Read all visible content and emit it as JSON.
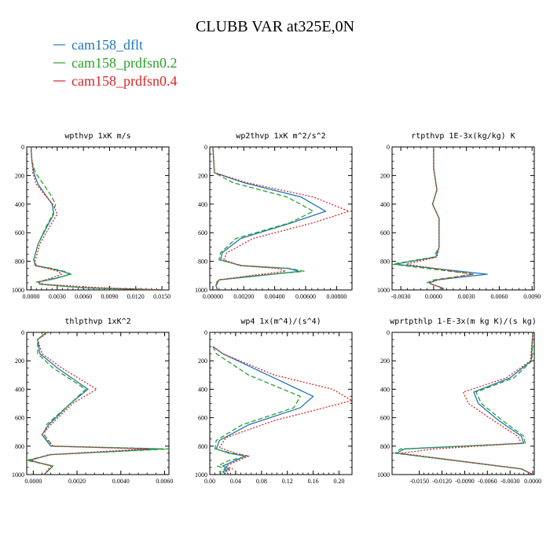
{
  "title": "CLUBB VAR at325E,0N",
  "legend": [
    {
      "label": "cam158_dflt",
      "color": "#1f77b4"
    },
    {
      "label": "cam158_prdfsn0.2",
      "color": "#2ca02c"
    },
    {
      "label": "cam158_prdfsn0.4",
      "color": "#d62728"
    }
  ],
  "chart_data": [
    {
      "type": "line",
      "title": "wpthvp  1xK m/s",
      "xlim": [
        -0.0005,
        0.0158
      ],
      "ylim": [
        0,
        1000
      ],
      "xticks": [
        0,
        0.003,
        0.006,
        0.009,
        0.012,
        0.015
      ],
      "xtick_labels": [
        "0.0000",
        "0.0030",
        "0.0060",
        "0.0090",
        "0.0120",
        "0.0150"
      ],
      "yticks": [
        0,
        200,
        400,
        600,
        800,
        1000
      ],
      "ytick_labels": [
        "0",
        "200",
        "400",
        "600",
        "800",
        "1000"
      ],
      "series": [
        {
          "name": "cam158_dflt",
          "x": [
            0,
            0.0001,
            0.0003,
            0.0008,
            0.0016,
            0.0024,
            0.0026,
            0.0018,
            0.0008,
            0.0003,
            0.0005,
            0.0022,
            0.0036,
            0.0045,
            0.0028,
            0.0008,
            0.0011,
            0.006,
            0.0155
          ],
          "y": [
            0,
            100,
            180,
            260,
            330,
            400,
            470,
            560,
            680,
            790,
            830,
            850,
            870,
            890,
            920,
            945,
            960,
            985,
            1000
          ]
        },
        {
          "name": "cam158_prdfsn0.2",
          "x": [
            0,
            0.0001,
            0.0005,
            0.0014,
            0.0022,
            0.0028,
            0.0025,
            0.0017,
            0.0008,
            0.0003,
            0.0006,
            0.0024,
            0.0038,
            0.0046,
            0.0026,
            0.0006,
            0.001,
            0.006,
            0.0155
          ],
          "y": [
            0,
            100,
            180,
            260,
            330,
            400,
            470,
            560,
            680,
            790,
            830,
            850,
            870,
            890,
            920,
            945,
            960,
            985,
            1000
          ]
        },
        {
          "name": "cam158_prdfsn0.4",
          "x": [
            0,
            0.0001,
            0.0002,
            0.0006,
            0.0015,
            0.0025,
            0.003,
            0.0021,
            0.001,
            0.0005,
            0.0004,
            0.0019,
            0.0031,
            0.0035,
            0.0022,
            0.0008,
            0.0015,
            0.008,
            0.0155
          ],
          "y": [
            0,
            100,
            180,
            260,
            330,
            400,
            470,
            560,
            680,
            790,
            830,
            850,
            870,
            890,
            920,
            945,
            960,
            985,
            1000
          ]
        }
      ]
    },
    {
      "type": "line",
      "title": "wp2thvp  1xK m^2/s^2",
      "xlim": [
        -0.0002,
        0.009
      ],
      "ylim": [
        0,
        1000
      ],
      "xticks": [
        0,
        0.002,
        0.004,
        0.006,
        0.008
      ],
      "xtick_labels": [
        "0.00000",
        "0.00200",
        "0.00400",
        "0.00600",
        "0.00800"
      ],
      "yticks": [
        0,
        200,
        400,
        600,
        800,
        1000
      ],
      "ytick_labels": [
        "0",
        "200",
        "400",
        "600",
        "800",
        "1000"
      ],
      "series": [
        {
          "name": "cam158_dflt",
          "x": [
            0,
            0.0001,
            0.002,
            0.0057,
            0.0073,
            0.0051,
            0.0018,
            0.0006,
            0.0005,
            0.0018,
            0.0049,
            0.0056,
            0.003,
            0.0004,
            0.0002,
            0.0003
          ],
          "y": [
            0,
            180,
            250,
            350,
            450,
            530,
            640,
            740,
            790,
            830,
            850,
            870,
            900,
            930,
            970,
            1000
          ]
        },
        {
          "name": "cam158_prdfsn0.2",
          "x": [
            0,
            0.0001,
            0.0013,
            0.0048,
            0.0065,
            0.005,
            0.0015,
            0.0005,
            0.0004,
            0.0019,
            0.005,
            0.0059,
            0.0028,
            0.0003,
            0.0002,
            0.0003
          ],
          "y": [
            0,
            180,
            250,
            350,
            450,
            530,
            640,
            740,
            790,
            830,
            850,
            870,
            900,
            930,
            970,
            1000
          ]
        },
        {
          "name": "cam158_prdfsn0.4",
          "x": [
            0,
            0.0001,
            0.0022,
            0.0065,
            0.0088,
            0.0065,
            0.0026,
            0.0009,
            0.0007,
            0.0018,
            0.0042,
            0.0047,
            0.0024,
            0.0004,
            0.0002,
            0.0003
          ],
          "y": [
            0,
            180,
            250,
            350,
            450,
            530,
            640,
            740,
            790,
            830,
            850,
            870,
            900,
            930,
            970,
            1000
          ]
        }
      ]
    },
    {
      "type": "line",
      "title": "rtpthvp  1E-3x(kg/kg) K",
      "xlim": [
        -0.0038,
        0.0092
      ],
      "ylim": [
        0,
        1000
      ],
      "xticks": [
        -0.003,
        0,
        0.003,
        0.006,
        0.009
      ],
      "xtick_labels": [
        "-0.0030",
        "0.0000",
        "0.0030",
        "0.0060",
        "0.0090"
      ],
      "yticks": [
        0,
        200,
        400,
        600,
        800,
        1000
      ],
      "ytick_labels": [
        "0",
        "200",
        "400",
        "600",
        "800",
        "1000"
      ],
      "series": [
        {
          "name": "cam158_dflt",
          "x": [
            0,
            0,
            0.0003,
            -0.0001,
            0.0005,
            0.0005,
            0.0002,
            -0.0035,
            0.0049,
            0.0003,
            -0.0004,
            -0.0002,
            0.0006,
            0.0009,
            0.0005
          ],
          "y": [
            0,
            150,
            300,
            400,
            500,
            700,
            770,
            820,
            890,
            930,
            950,
            960,
            980,
            990,
            1000
          ]
        },
        {
          "name": "cam158_prdfsn0.2",
          "x": [
            0,
            0,
            0.0003,
            -0.0001,
            0.0005,
            0.0005,
            0,
            -0.0038,
            0.0037,
            0,
            -0.0006,
            -0.0002,
            0.0006,
            0.0009,
            0.0005
          ],
          "y": [
            0,
            150,
            300,
            400,
            500,
            700,
            770,
            820,
            890,
            930,
            950,
            960,
            980,
            990,
            1000
          ]
        },
        {
          "name": "cam158_prdfsn0.4",
          "x": [
            0,
            0,
            0.0003,
            -0.0001,
            0.0005,
            0.0005,
            0.0003,
            -0.0025,
            0.0036,
            0.0004,
            -0.0003,
            -0.0002,
            0.0006,
            0.0009,
            0.0005
          ],
          "y": [
            0,
            150,
            300,
            400,
            500,
            700,
            770,
            820,
            890,
            930,
            950,
            960,
            980,
            990,
            1000
          ]
        }
      ]
    },
    {
      "type": "line",
      "title": "thlpthvp  1xK^2",
      "xlim": [
        -0.0003,
        0.0062
      ],
      "ylim": [
        0,
        1000
      ],
      "xticks": [
        0,
        0.002,
        0.004,
        0.006
      ],
      "xtick_labels": [
        "0.0000",
        "0.0020",
        "0.0040",
        "0.0060"
      ],
      "yticks": [
        0,
        200,
        400,
        600,
        800,
        1000
      ],
      "ytick_labels": [
        "0",
        "200",
        "400",
        "600",
        "800",
        "1000"
      ],
      "series": [
        {
          "name": "cam158_dflt",
          "x": [
            0.0006,
            0.0002,
            0.0003,
            0.0011,
            0.0025,
            0.0017,
            0.0007,
            0.0004,
            0.0008,
            0.0058,
            0.0008,
            -0.0002,
            0.0009,
            0.0005
          ],
          "y": [
            0,
            50,
            150,
            250,
            400,
            500,
            650,
            720,
            800,
            820,
            860,
            900,
            940,
            1000
          ]
        },
        {
          "name": "cam158_prdfsn0.2",
          "x": [
            0.0006,
            0.0002,
            0.0002,
            0.0009,
            0.0024,
            0.0017,
            0.0006,
            0.0005,
            0.0009,
            0.0062,
            0.0008,
            -0.0003,
            0.0009,
            0.0005
          ],
          "y": [
            0,
            50,
            150,
            250,
            400,
            500,
            650,
            720,
            800,
            820,
            860,
            900,
            940,
            1000
          ]
        },
        {
          "name": "cam158_prdfsn0.4",
          "x": [
            0.0007,
            0.0002,
            0.0004,
            0.0013,
            0.0029,
            0.0018,
            0.0008,
            0.0004,
            0.0009,
            0.0052,
            0.0007,
            -0.0001,
            0.0008,
            0.0005
          ],
          "y": [
            0,
            50,
            150,
            250,
            400,
            500,
            650,
            720,
            800,
            820,
            860,
            900,
            940,
            1000
          ]
        }
      ]
    },
    {
      "type": "line",
      "title": "wp4  1x(m^4)/(s^4)",
      "xlim": [
        0,
        0.22
      ],
      "ylim": [
        0,
        1000
      ],
      "xticks": [
        0,
        0.04,
        0.08,
        0.12,
        0.16,
        0.2
      ],
      "xtick_labels": [
        "0.00",
        "0.04",
        "0.08",
        "0.12",
        "0.16",
        "0.20"
      ],
      "yticks": [
        0,
        200,
        400,
        600,
        800,
        1000
      ],
      "ytick_labels": [
        "0",
        "200",
        "400",
        "600",
        "800",
        "1000"
      ],
      "series": [
        {
          "name": "cam158_dflt",
          "x": [
            0.005,
            0.02,
            0.09,
            0.16,
            0.14,
            0.06,
            0.015,
            0.01,
            0.03,
            0.055,
            0.04,
            0.02,
            0.03,
            0.02,
            0.025
          ],
          "y": [
            100,
            150,
            300,
            450,
            530,
            650,
            760,
            820,
            850,
            870,
            900,
            940,
            960,
            980,
            1000
          ]
        },
        {
          "name": "cam158_prdfsn0.2",
          "x": [
            0.005,
            0.01,
            0.06,
            0.14,
            0.13,
            0.05,
            0.01,
            0.008,
            0.035,
            0.06,
            0.03,
            0.012,
            0.025,
            0.015,
            0.02
          ],
          "y": [
            100,
            150,
            300,
            450,
            530,
            650,
            760,
            820,
            850,
            870,
            900,
            940,
            960,
            980,
            1000
          ]
        },
        {
          "name": "cam158_prdfsn0.4",
          "x": [
            0.005,
            0.02,
            0.1,
            0.19,
            0.22,
            0.1,
            0.025,
            0.015,
            0.04,
            0.06,
            0.045,
            0.025,
            0.035,
            0.025,
            0.03
          ],
          "y": [
            100,
            150,
            300,
            400,
            480,
            620,
            740,
            810,
            850,
            870,
            900,
            940,
            960,
            980,
            1000
          ]
        }
      ]
    },
    {
      "type": "line",
      "title": "wprtpthlp  1-E-3x(m kg K)/(s kg)",
      "xlim": [
        -0.0186,
        0.0002
      ],
      "ylim": [
        0,
        1000
      ],
      "xticks": [
        -0.015,
        -0.012,
        -0.009,
        -0.006,
        -0.003,
        0
      ],
      "xtick_labels": [
        "-0.0150",
        "-0.0120",
        "-0.0090",
        "-0.0060",
        "-0.0030",
        "0.0000"
      ],
      "yticks": [
        0,
        200,
        400,
        600,
        800,
        1000
      ],
      "ytick_labels": [
        "0",
        "200",
        "400",
        "600",
        "800",
        "1000"
      ],
      "series": [
        {
          "name": "cam158_dflt",
          "x": [
            0,
            -0.0002,
            -0.003,
            -0.0078,
            -0.0072,
            -0.0045,
            -0.0015,
            -0.0012,
            -0.017,
            -0.018,
            -0.0015,
            0
          ],
          "y": [
            0,
            200,
            320,
            420,
            500,
            620,
            730,
            780,
            820,
            850,
            960,
            1000
          ]
        },
        {
          "name": "cam158_prdfsn0.2",
          "x": [
            0,
            -0.0001,
            -0.0025,
            -0.0075,
            -0.0068,
            -0.004,
            -0.0012,
            -0.001,
            -0.0175,
            -0.0182,
            -0.0015,
            0
          ],
          "y": [
            0,
            200,
            320,
            420,
            500,
            620,
            730,
            780,
            820,
            850,
            960,
            1000
          ]
        },
        {
          "name": "cam158_prdfsn0.4",
          "x": [
            0,
            -0.0003,
            -0.0035,
            -0.0092,
            -0.0085,
            -0.0052,
            -0.002,
            -0.0015,
            -0.013,
            -0.0175,
            -0.0015,
            0
          ],
          "y": [
            0,
            200,
            320,
            420,
            500,
            620,
            730,
            780,
            820,
            850,
            960,
            1000
          ]
        }
      ]
    }
  ]
}
